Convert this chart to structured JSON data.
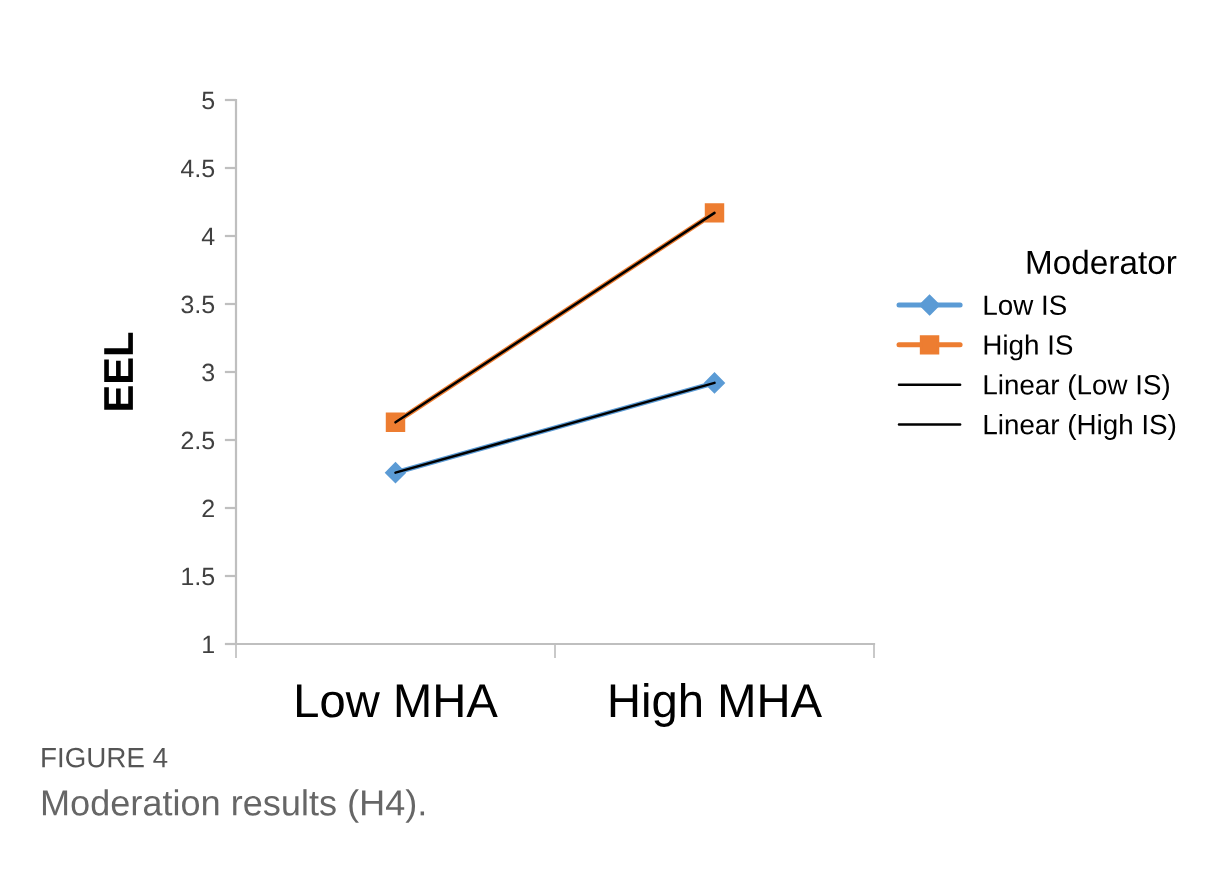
{
  "chart_data": {
    "type": "line",
    "ylabel": "EEL",
    "legend_title": "Moderator",
    "legend": "right",
    "grid": false,
    "categories": [
      "Low MHA",
      "High MHA"
    ],
    "ylim": [
      1,
      5
    ],
    "yticks": [
      1,
      1.5,
      2,
      2.5,
      3,
      3.5,
      4,
      4.5,
      5
    ],
    "series": [
      {
        "name": "Low IS",
        "color": "#5b9bd5",
        "values": [
          2.26,
          2.92
        ],
        "marker": "diamond"
      },
      {
        "name": "High IS",
        "color": "#ed7d31",
        "values": [
          2.63,
          4.17
        ],
        "marker": "square"
      },
      {
        "name": "Linear (Low IS)",
        "color": "#000000",
        "values": [
          2.26,
          2.92
        ],
        "marker": "none"
      },
      {
        "name": "Linear (High IS)",
        "color": "#000000",
        "values": [
          2.63,
          4.17
        ],
        "marker": "none"
      }
    ],
    "annotations": [
      "FIGURE 4",
      "Moderation results (H4)."
    ]
  }
}
